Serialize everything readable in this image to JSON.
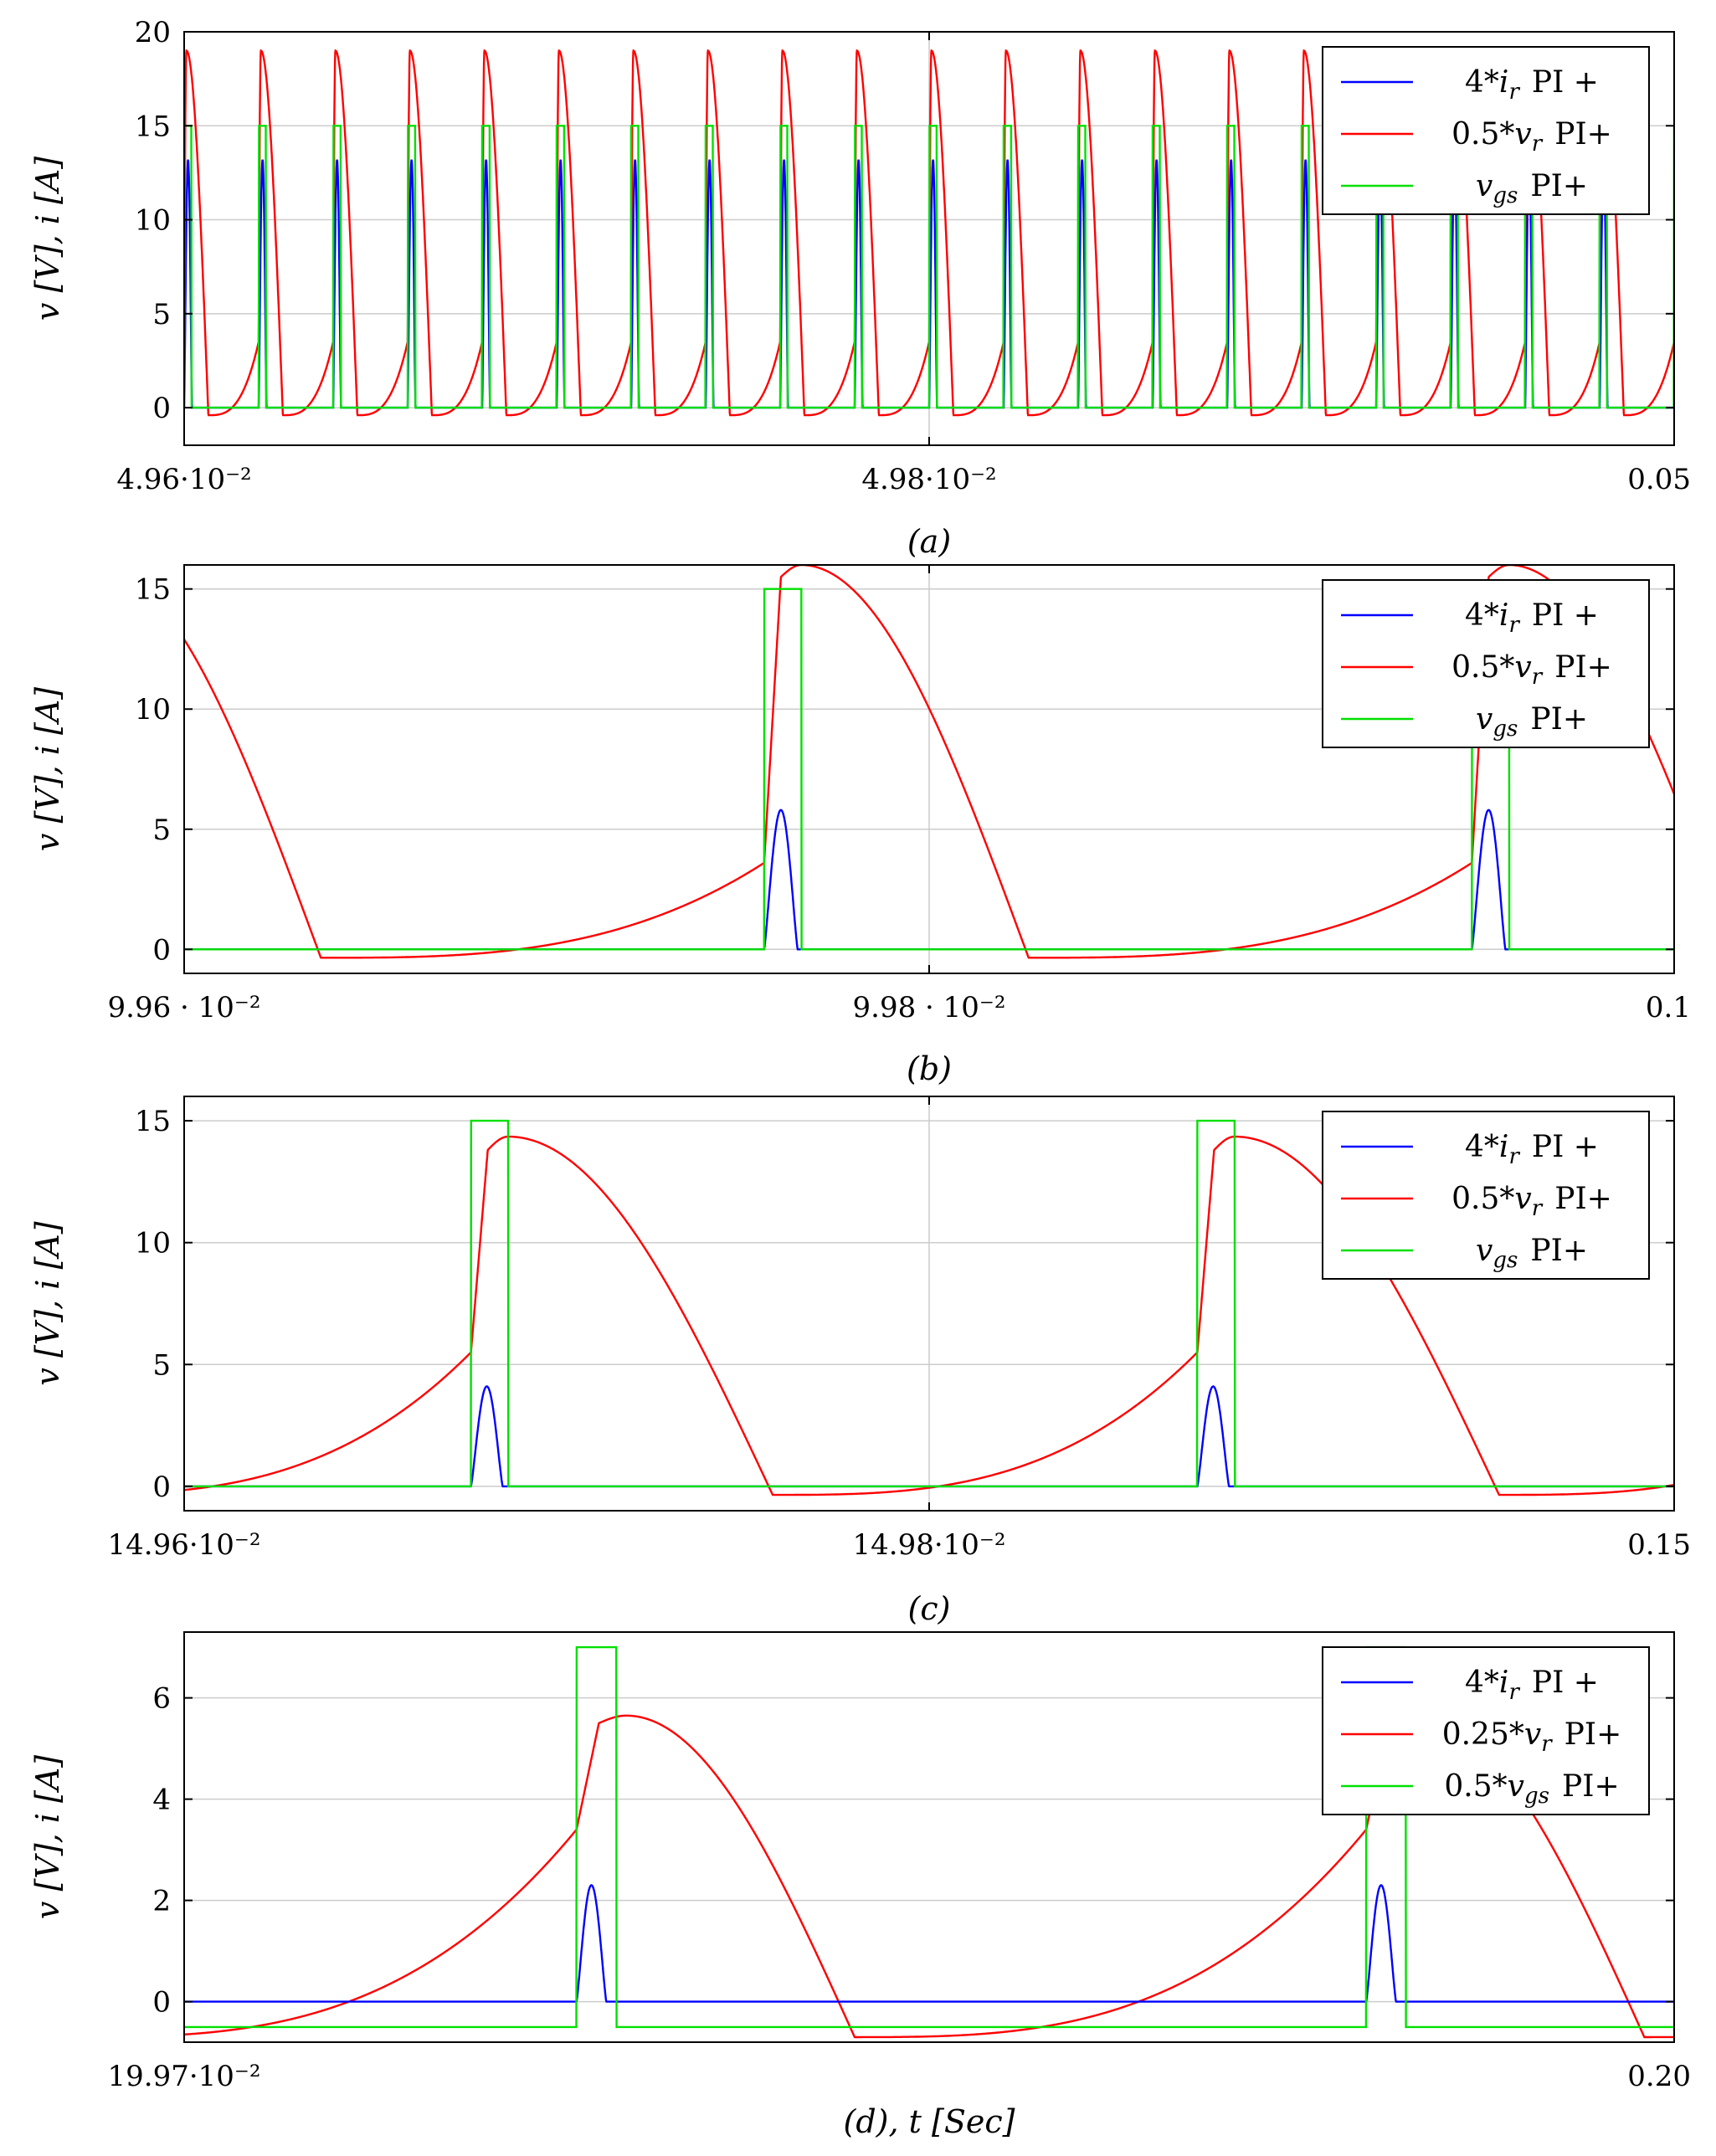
{
  "chart_data": [
    {
      "type": "line",
      "caption": "(a)",
      "ylabel": "v [V], i [A]",
      "xlim": [
        0.0496,
        0.05
      ],
      "ylim": [
        -2,
        20
      ],
      "xticks": [
        {
          "v": 0.0496,
          "label": "4.96·10⁻²"
        },
        {
          "v": 0.0498,
          "label": "4.98·10⁻²"
        },
        {
          "v": 0.05,
          "label": "0.05"
        }
      ],
      "yticks": [
        {
          "v": 0,
          "label": "0"
        },
        {
          "v": 5,
          "label": "5"
        },
        {
          "v": 10,
          "label": "10"
        },
        {
          "v": 15,
          "label": "15"
        },
        {
          "v": 20,
          "label": "20"
        }
      ],
      "legend": [
        "4*i_r PI +",
        "0.5*v_r PI+",
        "v_gs PI+"
      ],
      "legend_position": "top-right",
      "waveform": {
        "period_s": 2e-05,
        "first_rise_s": 0.04958,
        "gate_width_s": 2e-06,
        "gate_high": 15,
        "gate_low": 0,
        "v_start": 3.5,
        "v_top": 14.5,
        "v_peak": 19.0,
        "v_floor": -0.4,
        "v_peak_delay_s": 6e-07,
        "v_fall_end_s": 6.5e-06,
        "i_peak": 13.2,
        "i_width_s": 2.1e-06,
        "i_base": 0
      }
    },
    {
      "type": "line",
      "caption": "(b)",
      "ylabel": "v [V], i [A]",
      "xlim": [
        0.0996,
        0.1
      ],
      "ylim": [
        -1,
        16
      ],
      "xticks": [
        {
          "v": 0.0996,
          "label": "9.96 · 10⁻²"
        },
        {
          "v": 0.0998,
          "label": "9.98 · 10⁻²"
        },
        {
          "v": 0.1,
          "label": "0.1"
        }
      ],
      "yticks": [
        {
          "v": 0,
          "label": "0"
        },
        {
          "v": 5,
          "label": "5"
        },
        {
          "v": 10,
          "label": "10"
        },
        {
          "v": 15,
          "label": "15"
        }
      ],
      "legend": [
        "4*i_r PI +",
        "0.5*v_r PI+",
        "v_gs PI+"
      ],
      "legend_position": "top-right",
      "waveform": {
        "period_s": 0.00019,
        "first_rise_s": 0.0995657,
        "gate_width_s": 1e-05,
        "gate_high": 15,
        "gate_low": 0,
        "v_start": 3.6,
        "v_top": 15.5,
        "v_peak": 16.0,
        "v_floor": -0.35,
        "v_peak_delay_s": 1e-05,
        "v_fall_end_s": 7.1e-05,
        "i_peak": 5.8,
        "i_width_s": 9e-06,
        "i_base": 0
      }
    },
    {
      "type": "line",
      "caption": "(c)",
      "ylabel": "v [V], i [A]",
      "xlim": [
        0.1496,
        0.15
      ],
      "ylim": [
        -1,
        16
      ],
      "xticks": [
        {
          "v": 0.1496,
          "label": "14.96·10⁻²"
        },
        {
          "v": 0.1498,
          "label": "14.98·10⁻²"
        },
        {
          "v": 0.15,
          "label": "0.15"
        }
      ],
      "yticks": [
        {
          "v": 0,
          "label": "0"
        },
        {
          "v": 5,
          "label": "5"
        },
        {
          "v": 10,
          "label": "10"
        },
        {
          "v": 15,
          "label": "15"
        }
      ],
      "legend": [
        "4*i_r PI +",
        "0.5*v_r PI+",
        "v_gs PI+"
      ],
      "legend_position": "top-right",
      "waveform": {
        "period_s": 0.000195,
        "first_rise_s": 0.149677,
        "gate_width_s": 1e-05,
        "gate_high": 15,
        "gate_low": 0,
        "v_start": 5.5,
        "v_top": 13.8,
        "v_peak": 14.35,
        "v_floor": -0.35,
        "v_peak_delay_s": 1e-05,
        "v_fall_end_s": 8.1e-05,
        "i_peak": 4.1,
        "i_width_s": 8.5e-06,
        "i_base": 0
      }
    },
    {
      "type": "line",
      "caption": "(d), t [Sec]",
      "ylabel": "v [V], i [A]",
      "xlim": [
        0.1997,
        0.2
      ],
      "ylim": [
        -0.8,
        7.3
      ],
      "xticks": [
        {
          "v": 0.1997,
          "label": "19.97·10⁻²"
        },
        {
          "v": 0.2,
          "label": "0.20"
        }
      ],
      "yticks": [
        {
          "v": 0,
          "label": "0"
        },
        {
          "v": 2,
          "label": "2"
        },
        {
          "v": 4,
          "label": "4"
        },
        {
          "v": 6,
          "label": "6"
        }
      ],
      "legend": [
        "4*i_r PI +",
        "0.25*v_r PI+",
        "0.5*v_gs PI+"
      ],
      "legend_position": "top-right",
      "waveform": {
        "period_s": 0.000159,
        "first_rise_s": 0.199779,
        "gate_width_s": 8e-06,
        "gate_high": 7.0,
        "gate_low": -0.5,
        "v_start": 3.4,
        "v_top": 5.5,
        "v_peak": 5.65,
        "v_floor": -0.7,
        "v_peak_delay_s": 1e-05,
        "v_fall_end_s": 5.6e-05,
        "i_peak": 2.3,
        "i_width_s": 6e-06,
        "i_base": 0
      }
    }
  ],
  "colors": {
    "current": "#0000ff",
    "voltage": "#ff0000",
    "gate": "#00e000",
    "grid": "#cccccc",
    "axis": "#000000"
  }
}
